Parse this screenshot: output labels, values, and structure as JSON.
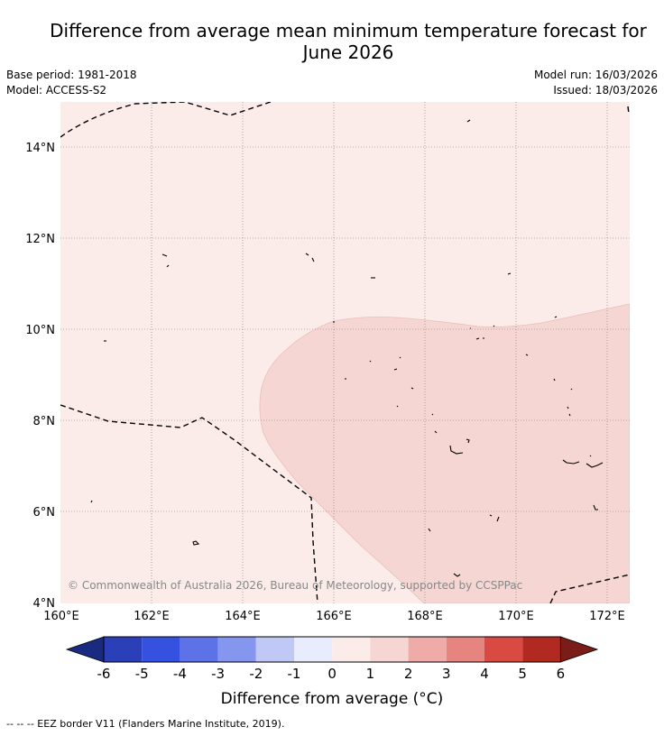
{
  "title_line1": "Difference from average mean minimum temperature forecast for",
  "title_line2": "June 2026",
  "base_period": "Base period: 1981-2018",
  "model": "Model: ACCESS-S2",
  "model_run": "Model run: 16/03/2026",
  "issued": "Issued: 18/03/2026",
  "map": {
    "lon_labels": [
      "160°E",
      "162°E",
      "164°E",
      "166°E",
      "168°E",
      "170°E",
      "172°E"
    ],
    "lat_labels": [
      "14°N",
      "12°N",
      "10°N",
      "8°N",
      "6°N",
      "4°N"
    ],
    "copyright": "© Commonwealth of Australia 2026, Bureau of Meteorology, supported by CCSPPac",
    "colors": {
      "background_class": "#fbebe9",
      "anomaly_class": "#f5d6d3"
    }
  },
  "colorbar": {
    "label": "Difference from average (°C)",
    "ticks": [
      "-6",
      "-5",
      "-4",
      "-3",
      "-2",
      "-1",
      "0",
      "1",
      "2",
      "3",
      "4",
      "5",
      "6"
    ],
    "colors": [
      "#1a2a80",
      "#2a3fb8",
      "#3551e0",
      "#5c72e6",
      "#8596ee",
      "#c0c8f6",
      "#e8ecfd",
      "#fbebe9",
      "#f5d6d3",
      "#eeaba8",
      "#e68580",
      "#d94a43",
      "#b02a22",
      "#7a1c18"
    ]
  },
  "footnote": "-- -- -- EEZ border V11 (Flanders Marine Institute, 2019)."
}
